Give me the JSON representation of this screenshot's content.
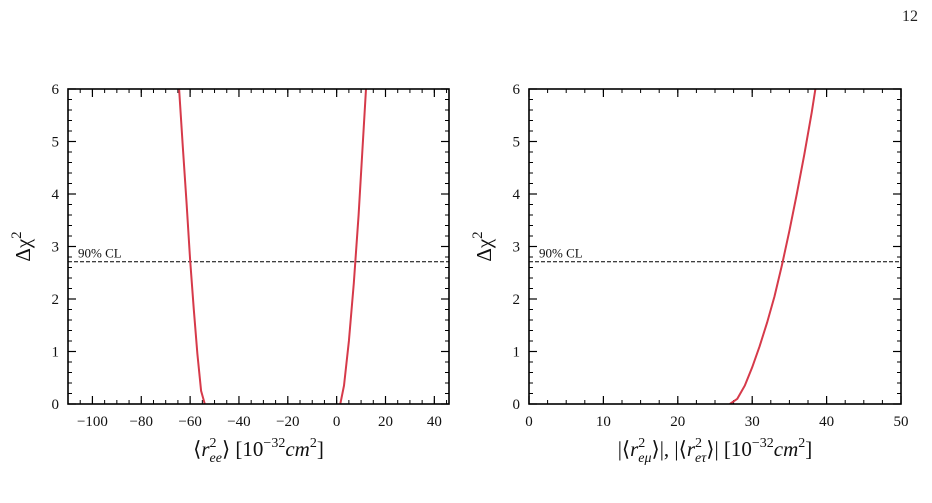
{
  "page_number": "12",
  "colors": {
    "curve": "#d63a4a",
    "axis": "#000000",
    "threshold_line": "#000000"
  },
  "chart_data": [
    {
      "type": "line",
      "title": "",
      "xlabel": "⟨r²ee⟩ [10⁻³²cm²]",
      "ylabel": "Δχ²",
      "xlim": [
        -110,
        46
      ],
      "ylim": [
        0,
        6
      ],
      "xticks": [
        -100,
        -80,
        -60,
        -40,
        -20,
        0,
        20,
        40
      ],
      "xtick_labels": [
        "−100",
        "−80",
        "−60",
        "−40",
        "−20",
        "0",
        "20",
        "40"
      ],
      "yticks": [
        0,
        1,
        2,
        3,
        4,
        5,
        6
      ],
      "ytick_labels": [
        "0",
        "1",
        "2",
        "3",
        "4",
        "5",
        "6"
      ],
      "threshold": {
        "y": 2.71,
        "label": "90% CL"
      },
      "series": [
        {
          "x": [
            -64.5,
            -63,
            -61.5,
            -60,
            -58.5,
            -57,
            -55.5,
            -54
          ],
          "y": [
            6.0,
            4.9,
            3.85,
            2.75,
            1.8,
            0.95,
            0.25,
            0.0
          ]
        },
        {
          "x": [
            1.5,
            3,
            5,
            7,
            9,
            10.5,
            12
          ],
          "y": [
            0.0,
            0.35,
            1.2,
            2.3,
            3.6,
            4.8,
            6.0
          ]
        }
      ]
    },
    {
      "type": "line",
      "title": "",
      "xlabel": "|⟨r²eμ⟩|, |⟨r²eτ⟩| [10⁻³²cm²]",
      "ylabel": "Δχ²",
      "xlim": [
        0,
        50
      ],
      "ylim": [
        0,
        6
      ],
      "xticks": [
        0,
        10,
        20,
        30,
        40,
        50
      ],
      "xtick_labels": [
        "0",
        "10",
        "20",
        "30",
        "40",
        "50"
      ],
      "yticks": [
        0,
        1,
        2,
        3,
        4,
        5,
        6
      ],
      "ytick_labels": [
        "0",
        "1",
        "2",
        "3",
        "4",
        "5",
        "6"
      ],
      "threshold": {
        "y": 2.71,
        "label": "90% CL"
      },
      "series": [
        {
          "x": [
            27,
            28,
            29,
            30,
            31,
            32,
            33,
            34,
            35,
            36,
            37,
            38,
            38.5
          ],
          "y": [
            0.0,
            0.1,
            0.35,
            0.7,
            1.1,
            1.55,
            2.05,
            2.65,
            3.3,
            4.0,
            4.75,
            5.55,
            6.0
          ]
        }
      ]
    }
  ]
}
